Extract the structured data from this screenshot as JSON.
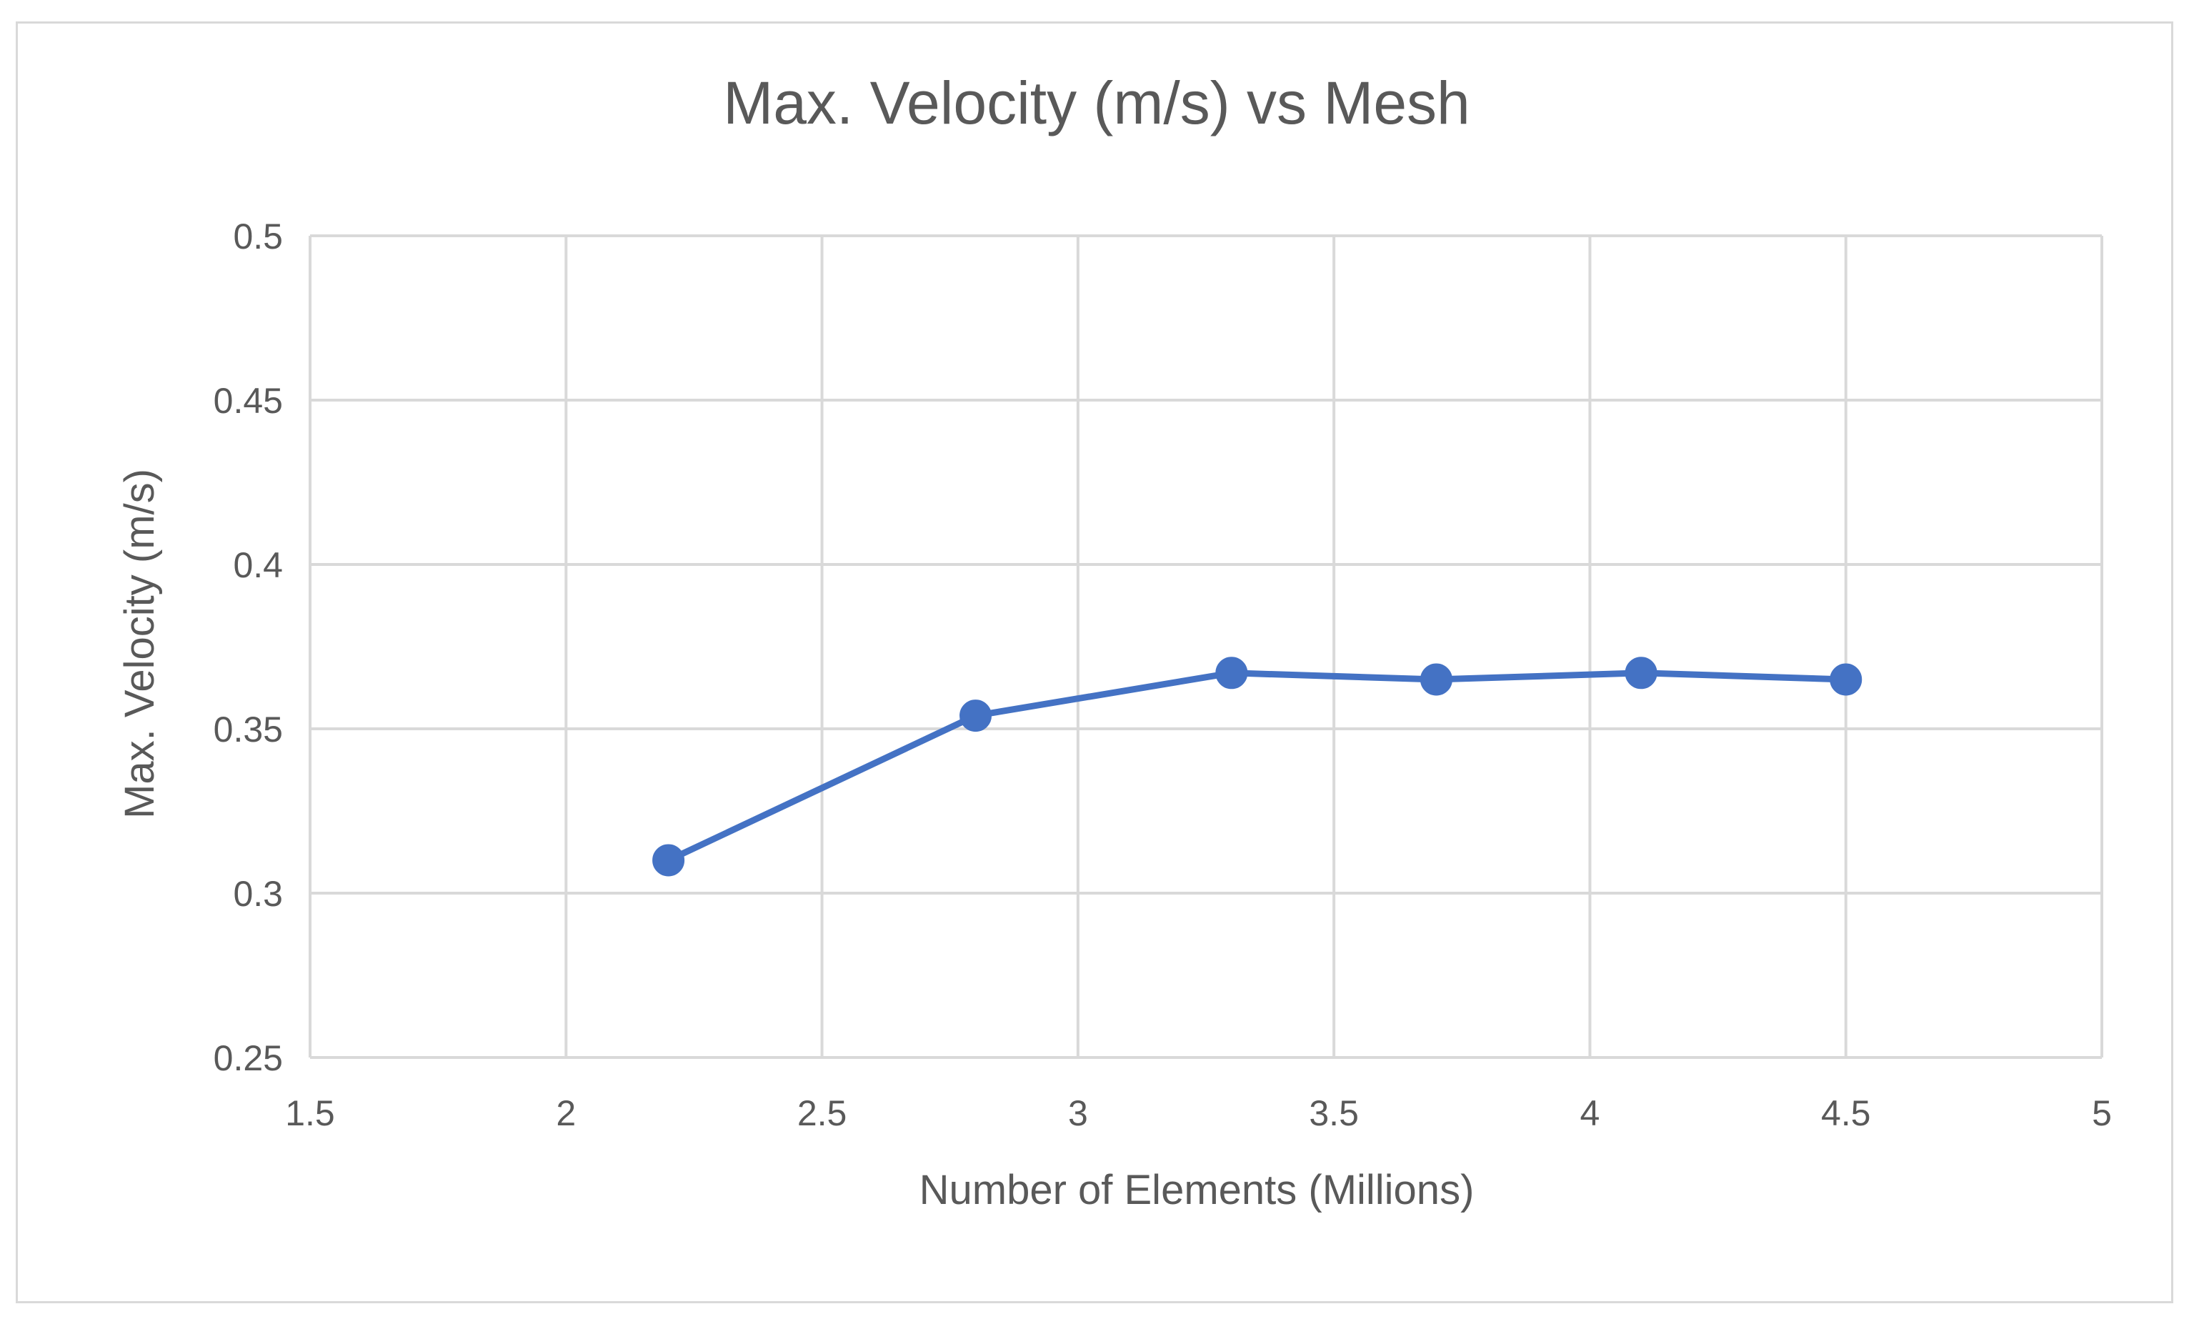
{
  "chart_data": {
    "type": "scatter",
    "mode": "lines+markers",
    "title": "Max. Velocity (m/s) vs Mesh",
    "xlabel": "Number of Elements (Millions)",
    "ylabel": "Max. Velocity (m/s)",
    "xlim": [
      1.5,
      5
    ],
    "ylim": [
      0.25,
      0.5
    ],
    "x_ticks": [
      1.5,
      2,
      2.5,
      3,
      3.5,
      4,
      4.5,
      5
    ],
    "x_tick_labels": [
      "1.5",
      "2",
      "2.5",
      "3",
      "3.5",
      "4",
      "4.5",
      "5"
    ],
    "y_ticks": [
      0.25,
      0.3,
      0.35,
      0.4,
      0.45,
      0.5
    ],
    "y_tick_labels": [
      "0.25",
      "0.3",
      "0.35",
      "0.4",
      "0.45",
      "0.5"
    ],
    "grid": true,
    "legend": "none",
    "series": [
      {
        "name": "Max. Velocity",
        "color": "#4472c4",
        "x": [
          2.2,
          2.8,
          3.3,
          3.7,
          4.1,
          4.5
        ],
        "y": [
          0.31,
          0.354,
          0.367,
          0.365,
          0.367,
          0.365
        ]
      }
    ]
  },
  "colors": {
    "gridline": "#d9d9d9",
    "text": "#595959",
    "series": "#4472c4"
  }
}
